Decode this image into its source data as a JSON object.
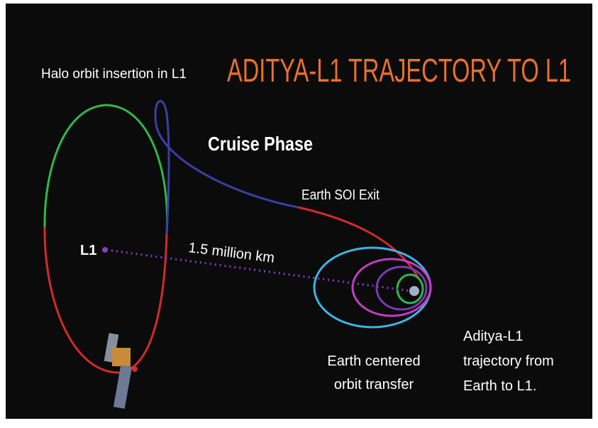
{
  "title": "ADITYA-L1 TRAJECTORY TO L1",
  "labels": {
    "halo_insertion": "Halo orbit insertion in L1",
    "cruise_phase": "Cruise Phase",
    "soi_exit": "Earth SOI Exit",
    "l1": "L1",
    "distance": "1.5 million km",
    "earth_transfer": [
      "Earth centered",
      "orbit transfer"
    ],
    "caption": [
      "Aditya-L1",
      "trajectory from",
      "Earth to L1."
    ]
  }
}
